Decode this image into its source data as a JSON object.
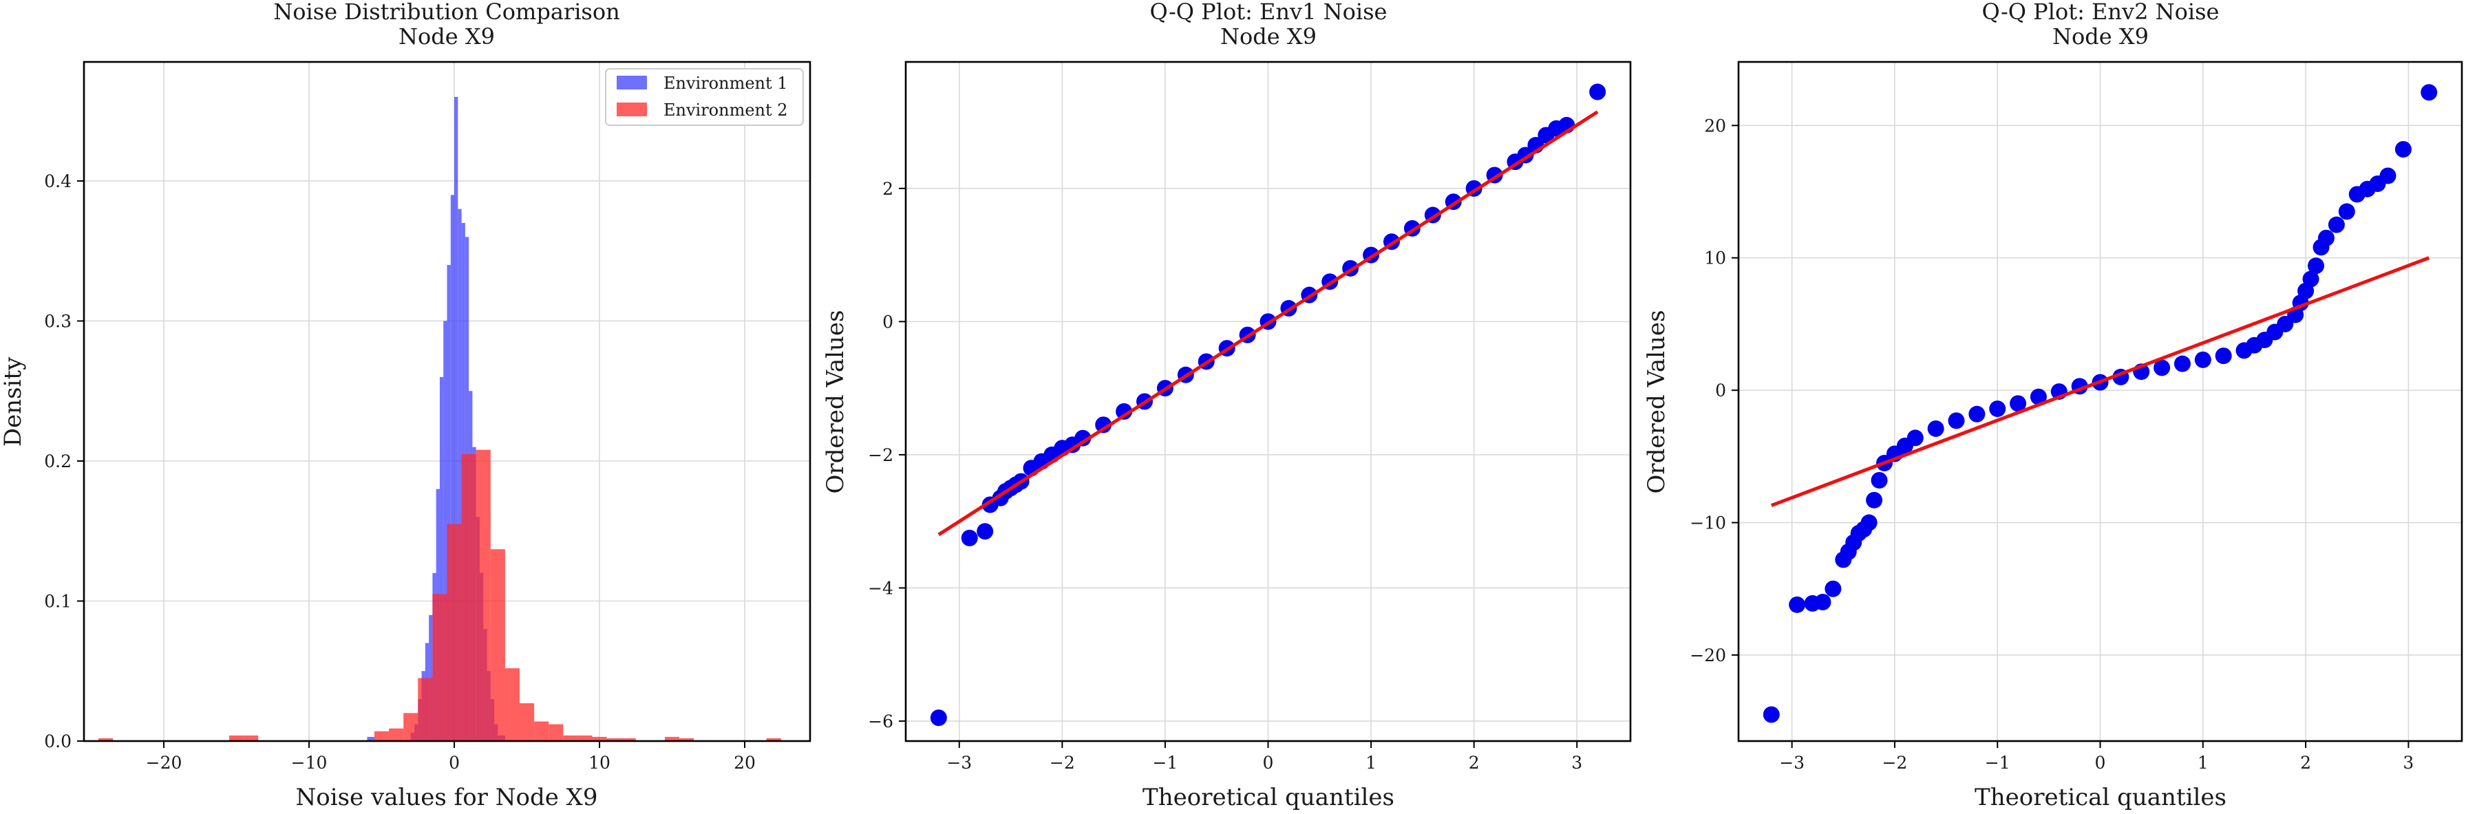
{
  "figure": {
    "colors": {
      "env1": "#3333ff",
      "env2": "#ff2a2a",
      "qq_points": "#0000ee",
      "qq_line": "#ee1111",
      "grid": "#d9d9d9"
    }
  },
  "chart_data": [
    {
      "type": "histogram",
      "title_line1": "Noise Distribution Comparison",
      "title_line2": "Node X9",
      "xlabel": "Noise values for Node X9",
      "ylabel": "Density",
      "xlim": [
        -25.5,
        24.5
      ],
      "ylim": [
        0,
        0.485
      ],
      "xticks": [
        -20,
        -10,
        0,
        10,
        20
      ],
      "yticks": [
        0.0,
        0.1,
        0.2,
        0.3,
        0.4
      ],
      "ytick_labels": [
        "0.0",
        "0.1",
        "0.2",
        "0.3",
        "0.4"
      ],
      "xtick_labels": [
        "−20",
        "−10",
        "0",
        "10",
        "20"
      ],
      "legend_position": "top-right",
      "grid": true,
      "series": [
        {
          "name": "Environment 1",
          "color": "#3333ff",
          "opacity": 0.7,
          "bin_edges": [
            -6.0,
            -5.5,
            -5.0,
            -4.5,
            -4.0,
            -3.5,
            -3.0,
            -2.75,
            -2.5,
            -2.25,
            -2.0,
            -1.75,
            -1.5,
            -1.25,
            -1.0,
            -0.75,
            -0.5,
            -0.25,
            0.0,
            0.25,
            0.5,
            0.75,
            1.0,
            1.25,
            1.5,
            1.75,
            2.0,
            2.25,
            2.5,
            2.75,
            3.0,
            3.5
          ],
          "values": [
            0.003,
            0.0,
            0.0,
            0.0,
            0.0,
            0.0,
            0.006,
            0.012,
            0.03,
            0.05,
            0.07,
            0.09,
            0.12,
            0.18,
            0.26,
            0.3,
            0.34,
            0.39,
            0.46,
            0.38,
            0.37,
            0.36,
            0.25,
            0.21,
            0.16,
            0.12,
            0.08,
            0.05,
            0.03,
            0.012,
            0.004
          ]
        },
        {
          "name": "Environment 2",
          "color": "#ff2a2a",
          "opacity": 0.75,
          "bin_edges": [
            -24.5,
            -23.5,
            -22.5,
            -21.5,
            -20.5,
            -19.5,
            -18.5,
            -17.5,
            -16.5,
            -15.5,
            -14.5,
            -13.5,
            -12.5,
            -11.5,
            -10.5,
            -9.5,
            -8.5,
            -7.5,
            -6.5,
            -5.5,
            -4.5,
            -3.5,
            -2.5,
            -1.5,
            -0.5,
            0.5,
            1.5,
            2.5,
            3.5,
            4.5,
            5.5,
            6.5,
            7.5,
            8.5,
            9.5,
            10.5,
            11.5,
            12.5,
            13.5,
            14.5,
            15.5,
            16.5,
            17.5,
            18.5,
            19.5,
            20.5,
            21.5,
            22.5
          ],
          "values": [
            0.002,
            0.0,
            0.0,
            0.0,
            0.0,
            0.0,
            0.0,
            0.0,
            0.0,
            0.004,
            0.004,
            0.0,
            0.0,
            0.0,
            0.0,
            0.0,
            0.0,
            0.0,
            0.0,
            0.007,
            0.009,
            0.02,
            0.045,
            0.105,
            0.155,
            0.205,
            0.208,
            0.137,
            0.052,
            0.027,
            0.014,
            0.012,
            0.004,
            0.004,
            0.003,
            0.002,
            0.002,
            0.0,
            0.0,
            0.003,
            0.002,
            0.0,
            0.0,
            0.0,
            0.0,
            0.0,
            0.002
          ]
        }
      ]
    },
    {
      "type": "scatter",
      "title_line1": "Q-Q Plot: Env1 Noise",
      "title_line2": "Node X9",
      "xlabel": "Theoretical quantiles",
      "ylabel": "Ordered Values",
      "xlim": [
        -3.52,
        3.52
      ],
      "ylim": [
        -6.3,
        3.9
      ],
      "xticks": [
        -3,
        -2,
        -1,
        0,
        1,
        2,
        3
      ],
      "xtick_labels": [
        "−3",
        "−2",
        "−1",
        "0",
        "1",
        "2",
        "3"
      ],
      "yticks": [
        -6,
        -4,
        -2,
        0,
        2
      ],
      "ytick_labels": [
        "−6",
        "−4",
        "−2",
        "0",
        "2"
      ],
      "grid": true,
      "points_color": "#0000ee",
      "line_color": "#ee1111",
      "fit_line": {
        "x": [
          -3.2,
          3.2
        ],
        "y": [
          -3.2,
          3.15
        ]
      },
      "quantile_points": {
        "x": [
          -3.2,
          -2.9,
          -2.75,
          -2.7,
          -2.6,
          -2.55,
          -2.5,
          -2.45,
          -2.4,
          -2.3,
          -2.2,
          -2.1,
          -2.0,
          -1.9,
          -1.8,
          -1.6,
          -1.4,
          -1.2,
          -1.0,
          -0.8,
          -0.6,
          -0.4,
          -0.2,
          0.0,
          0.2,
          0.4,
          0.6,
          0.8,
          1.0,
          1.2,
          1.4,
          1.6,
          1.8,
          2.0,
          2.2,
          2.4,
          2.5,
          2.6,
          2.7,
          2.8,
          2.9,
          3.2
        ],
        "y": [
          -5.95,
          -3.25,
          -3.15,
          -2.75,
          -2.65,
          -2.55,
          -2.5,
          -2.45,
          -2.4,
          -2.2,
          -2.1,
          -2.0,
          -1.9,
          -1.85,
          -1.75,
          -1.55,
          -1.35,
          -1.2,
          -1.0,
          -0.8,
          -0.6,
          -0.4,
          -0.2,
          0.0,
          0.2,
          0.4,
          0.6,
          0.8,
          1.0,
          1.2,
          1.4,
          1.6,
          1.8,
          2.0,
          2.2,
          2.4,
          2.5,
          2.65,
          2.8,
          2.9,
          2.95,
          3.45
        ]
      }
    },
    {
      "type": "scatter",
      "title_line1": "Q-Q Plot: Env2 Noise",
      "title_line2": "Node X9",
      "xlabel": "Theoretical quantiles",
      "ylabel": "Ordered Values",
      "xlim": [
        -3.52,
        3.52
      ],
      "ylim": [
        -26.5,
        24.8
      ],
      "xticks": [
        -3,
        -2,
        -1,
        0,
        1,
        2,
        3
      ],
      "xtick_labels": [
        "−3",
        "−2",
        "−1",
        "0",
        "1",
        "2",
        "3"
      ],
      "yticks": [
        -20,
        -10,
        0,
        10,
        20
      ],
      "ytick_labels": [
        "−20",
        "−10",
        "0",
        "10",
        "20"
      ],
      "grid": true,
      "points_color": "#0000ee",
      "line_color": "#ee1111",
      "fit_line": {
        "x": [
          -3.2,
          3.2
        ],
        "y": [
          -8.7,
          10.0
        ]
      },
      "quantile_points": {
        "x": [
          -3.2,
          -2.95,
          -2.8,
          -2.7,
          -2.6,
          -2.5,
          -2.45,
          -2.4,
          -2.35,
          -2.3,
          -2.25,
          -2.2,
          -2.15,
          -2.1,
          -2.0,
          -1.9,
          -1.8,
          -1.6,
          -1.4,
          -1.2,
          -1.0,
          -0.8,
          -0.6,
          -0.4,
          -0.2,
          0.0,
          0.2,
          0.4,
          0.6,
          0.8,
          1.0,
          1.2,
          1.4,
          1.5,
          1.6,
          1.7,
          1.8,
          1.9,
          1.95,
          2.0,
          2.05,
          2.1,
          2.15,
          2.2,
          2.3,
          2.4,
          2.5,
          2.6,
          2.7,
          2.8,
          2.95,
          3.2
        ],
        "y": [
          -24.5,
          -16.2,
          -16.1,
          -16.0,
          -15.0,
          -12.8,
          -12.2,
          -11.5,
          -10.8,
          -10.5,
          -10.0,
          -8.3,
          -6.8,
          -5.5,
          -4.8,
          -4.2,
          -3.6,
          -2.9,
          -2.3,
          -1.8,
          -1.4,
          -1.0,
          -0.5,
          -0.1,
          0.3,
          0.6,
          1.0,
          1.4,
          1.7,
          2.0,
          2.3,
          2.6,
          3.0,
          3.4,
          3.8,
          4.4,
          5.0,
          5.7,
          6.6,
          7.5,
          8.4,
          9.4,
          10.8,
          11.5,
          12.5,
          13.5,
          14.8,
          15.2,
          15.6,
          16.2,
          18.2,
          22.5
        ]
      }
    }
  ]
}
